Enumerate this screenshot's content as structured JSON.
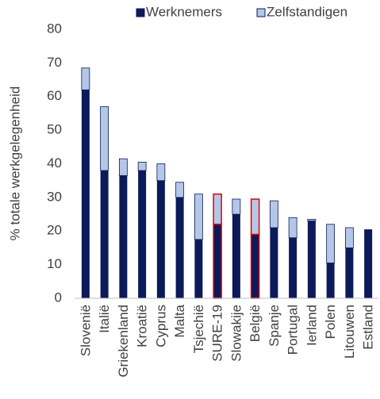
{
  "chart_data": {
    "type": "stacked_bar",
    "y_label": "% totale werkgelegenheid",
    "categories": [
      "Slovenië",
      "Italië",
      "Griekenland",
      "Kroatië",
      "Cyprus",
      "Malta",
      "Tsjechië",
      "SURE-19",
      "Slowakije",
      "België",
      "Spanje",
      "Portugal",
      "Ierland",
      "Polen",
      "Litouwen",
      "Estland"
    ],
    "series": [
      {
        "name": "Werknemers",
        "color": "#0c1a5a",
        "values": [
          62,
          38,
          36.5,
          38,
          35,
          30,
          17.5,
          22,
          25,
          19,
          21,
          18,
          23,
          10.5,
          15,
          20.5
        ]
      },
      {
        "name": "Zelfstandigen",
        "color": "#b4c7e7",
        "values": [
          6.5,
          19,
          5,
          2.5,
          5,
          4.5,
          13.5,
          9,
          4.5,
          10.5,
          8,
          6,
          0.5,
          11.5,
          6,
          0
        ]
      }
    ],
    "ylim": [
      0,
      80
    ],
    "yticks": [
      0,
      10,
      20,
      30,
      40,
      50,
      60,
      70,
      80
    ],
    "grid": false,
    "legend": "top",
    "highlighted": [
      7,
      9
    ],
    "highlight_color": "#e00000"
  }
}
